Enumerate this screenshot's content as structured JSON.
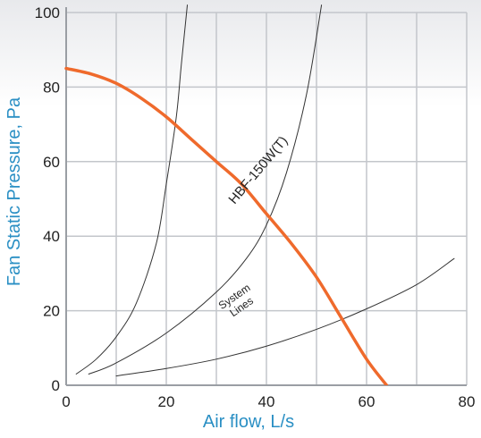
{
  "chart_data": {
    "type": "line",
    "xlabel": "Air flow, L/s",
    "ylabel": "Fan Static Pressure, Pa",
    "xlim": [
      0,
      80
    ],
    "ylim": [
      0,
      100
    ],
    "xticks": [
      0,
      20,
      40,
      60,
      80
    ],
    "yticks": [
      0,
      20,
      40,
      60,
      80,
      100
    ],
    "grid": true,
    "series": [
      {
        "name": "HBF-150W(T)",
        "color": "#ef6a2c",
        "x": [
          0,
          5,
          10,
          15,
          20,
          25,
          30,
          35,
          40,
          45,
          50,
          55,
          60,
          64
        ],
        "y": [
          85,
          83.5,
          81,
          77,
          72,
          66,
          60,
          54,
          46,
          38,
          29,
          18,
          7,
          0
        ]
      },
      {
        "name": "",
        "color": "#333333",
        "x": [
          2,
          6,
          10,
          14,
          18,
          20,
          22,
          23,
          24.2
        ],
        "y": [
          3,
          7,
          13,
          22,
          38,
          54,
          72,
          86,
          102
        ]
      },
      {
        "name": "",
        "color": "#333333",
        "x": [
          4.5,
          10,
          20,
          30,
          36,
          40,
          44,
          48,
          51
        ],
        "y": [
          3,
          6,
          14,
          25,
          34,
          43,
          57,
          78,
          102
        ]
      },
      {
        "name": "",
        "color": "#333333",
        "x": [
          10,
          20,
          30,
          40,
          50,
          60,
          70,
          77.5
        ],
        "y": [
          2.5,
          4.5,
          7,
          10.5,
          15,
          20.5,
          27,
          34
        ]
      }
    ],
    "annotations": [
      {
        "text": "HBF-150W(T)",
        "x": 39,
        "y": 57,
        "angle": -50
      },
      {
        "text_lines": [
          "System",
          "Lines"
        ],
        "x": 34,
        "y": 23,
        "angle": -35
      }
    ]
  }
}
